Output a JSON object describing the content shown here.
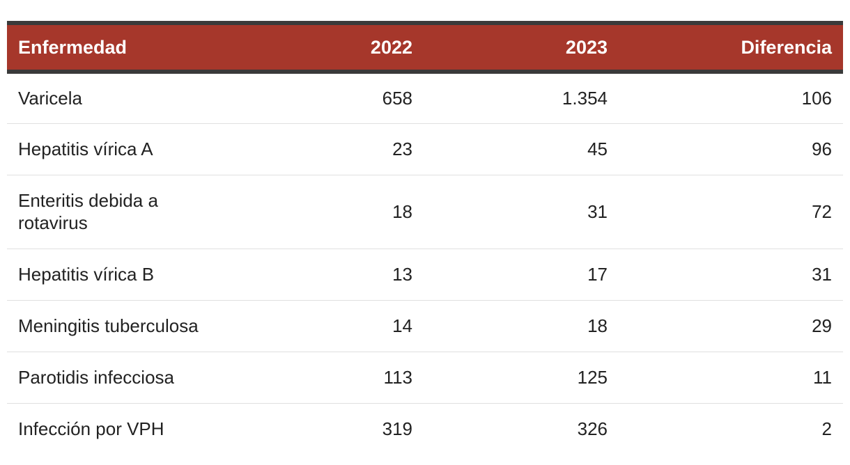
{
  "chart_data": {
    "type": "table",
    "columns": [
      "Enfermedad",
      "2022",
      "2023",
      "Diferencia"
    ],
    "rows": [
      {
        "enfermedad": "Varicela",
        "y2022": "658",
        "y2023": "1.354",
        "diferencia": "106"
      },
      {
        "enfermedad": "Hepatitis vírica A",
        "y2022": "23",
        "y2023": "45",
        "diferencia": "96"
      },
      {
        "enfermedad": "Enteritis debida a rotavirus",
        "y2022": "18",
        "y2023": "31",
        "diferencia": "72"
      },
      {
        "enfermedad": "Hepatitis vírica B",
        "y2022": "13",
        "y2023": "17",
        "diferencia": "31"
      },
      {
        "enfermedad": "Meningitis tuberculosa",
        "y2022": "14",
        "y2023": "18",
        "diferencia": "29"
      },
      {
        "enfermedad": "Parotidis infecciosa",
        "y2022": "113",
        "y2023": "125",
        "diferencia": "11"
      },
      {
        "enfermedad": "Infección por VPH",
        "y2022": "319",
        "y2023": "326",
        "diferencia": "2"
      }
    ],
    "colors": {
      "header_bg": "#a6372b",
      "header_text": "#ffffff",
      "header_border": "#3a3a3a",
      "row_divider": "#e0e0e0"
    }
  }
}
